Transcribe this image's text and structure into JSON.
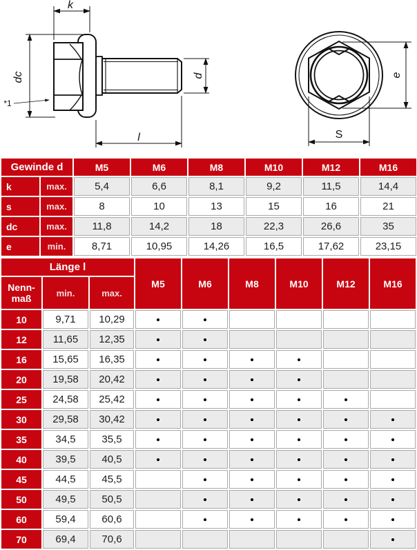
{
  "drawing": {
    "k_label": "k",
    "dc_label": "dc",
    "d_label": "d",
    "l_label": "l",
    "e_label": "e",
    "s_label": "S",
    "footnote_label": "*1"
  },
  "table1": {
    "header_label": "Gewinde d",
    "sizes": [
      "M5",
      "M6",
      "M8",
      "M10",
      "M12",
      "M16"
    ],
    "rows": [
      {
        "label": "k",
        "limit": "max.",
        "values": [
          "5,4",
          "6,6",
          "8,1",
          "9,2",
          "11,5",
          "14,4"
        ]
      },
      {
        "label": "s",
        "limit": "max.",
        "values": [
          "8",
          "10",
          "13",
          "15",
          "16",
          "21"
        ]
      },
      {
        "label": "dc",
        "limit": "max.",
        "values": [
          "11,8",
          "14,2",
          "18",
          "22,3",
          "26,6",
          "35"
        ]
      },
      {
        "label": "e",
        "limit": "min.",
        "values": [
          "8,71",
          "10,95",
          "14,26",
          "16,5",
          "17,62",
          "23,15"
        ]
      }
    ]
  },
  "table2": {
    "laenge_label": "Länge l",
    "nenn_line1": "Nenn-",
    "nenn_line2": "maß",
    "min_label": "min.",
    "max_label": "max.",
    "sizes": [
      "M5",
      "M6",
      "M8",
      "M10",
      "M12",
      "M16"
    ],
    "rows": [
      {
        "nenn": "10",
        "min": "9,71",
        "max": "10,29",
        "dots": [
          1,
          1,
          0,
          0,
          0,
          0
        ]
      },
      {
        "nenn": "12",
        "min": "11,65",
        "max": "12,35",
        "dots": [
          1,
          1,
          0,
          0,
          0,
          0
        ]
      },
      {
        "nenn": "16",
        "min": "15,65",
        "max": "16,35",
        "dots": [
          1,
          1,
          1,
          1,
          0,
          0
        ]
      },
      {
        "nenn": "20",
        "min": "19,58",
        "max": "20,42",
        "dots": [
          1,
          1,
          1,
          1,
          0,
          0
        ]
      },
      {
        "nenn": "25",
        "min": "24,58",
        "max": "25,42",
        "dots": [
          1,
          1,
          1,
          1,
          1,
          0
        ]
      },
      {
        "nenn": "30",
        "min": "29,58",
        "max": "30,42",
        "dots": [
          1,
          1,
          1,
          1,
          1,
          1
        ]
      },
      {
        "nenn": "35",
        "min": "34,5",
        "max": "35,5",
        "dots": [
          1,
          1,
          1,
          1,
          1,
          1
        ]
      },
      {
        "nenn": "40",
        "min": "39,5",
        "max": "40,5",
        "dots": [
          1,
          1,
          1,
          1,
          1,
          1
        ]
      },
      {
        "nenn": "45",
        "min": "44,5",
        "max": "45,5",
        "dots": [
          0,
          1,
          1,
          1,
          1,
          1
        ]
      },
      {
        "nenn": "50",
        "min": "49,5",
        "max": "50,5",
        "dots": [
          0,
          1,
          1,
          1,
          1,
          1
        ]
      },
      {
        "nenn": "60",
        "min": "59,4",
        "max": "60,6",
        "dots": [
          0,
          1,
          1,
          1,
          1,
          1
        ]
      },
      {
        "nenn": "70",
        "min": "69,4",
        "max": "70,6",
        "dots": [
          0,
          0,
          0,
          0,
          0,
          1
        ]
      }
    ]
  },
  "colors": {
    "red": "#c70510",
    "row_alt": "#ebebeb",
    "cell_border": "#a9a9a9",
    "line": "#111111"
  }
}
